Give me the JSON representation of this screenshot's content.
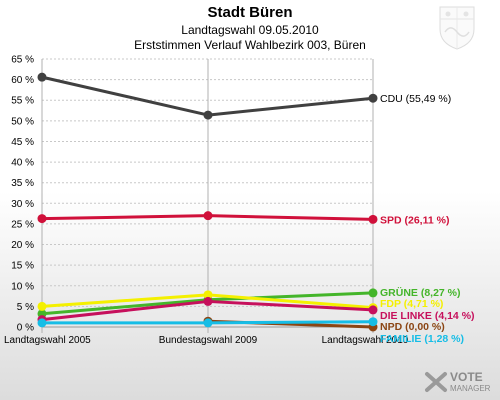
{
  "header": {
    "title": "Stadt Büren",
    "subtitle_1": "Landtagswahl 09.05.2010",
    "subtitle_2": "Erststimmen Verlauf Wahlbezirk 003, Büren"
  },
  "watermark": {
    "main": "VOTE",
    "sub": "MANAGER"
  },
  "chart_data": {
    "type": "line",
    "title": "Stadt Büren",
    "subtitle": "Landtagswahl 09.05.2010",
    "x": [
      "Landtagswahl 2005",
      "Bundestagswahl 2009",
      "Landtagswahl 2010"
    ],
    "ylim": [
      0,
      65
    ],
    "yticks": [
      0,
      5,
      10,
      15,
      20,
      25,
      30,
      35,
      40,
      45,
      50,
      55,
      60,
      65
    ],
    "ytick_labels": [
      "0 %",
      "5 %",
      "10 %",
      "15 %",
      "20 %",
      "25 %",
      "30 %",
      "35 %",
      "40 %",
      "45 %",
      "50 %",
      "55 %",
      "60 %",
      "65 %"
    ],
    "grid": true,
    "series": [
      {
        "name": "CDU",
        "label": "CDU (55,49 %)",
        "values": [
          60.6,
          51.4,
          55.49
        ],
        "color": "#404040"
      },
      {
        "name": "SPD",
        "label": "SPD (26,11 %)",
        "values": [
          26.3,
          27.0,
          26.11
        ],
        "color": "#d0103a"
      },
      {
        "name": "GRÜNE",
        "label": "GRÜNE (8,27 %)",
        "values": [
          3.2,
          6.6,
          8.27
        ],
        "color": "#44b52a"
      },
      {
        "name": "FDP",
        "label": "FDP (4,71 %)",
        "values": [
          5.0,
          7.8,
          4.71
        ],
        "color": "#f4f000"
      },
      {
        "name": "DIE LINKE",
        "label": "DIE LINKE (4,14 %)",
        "values": [
          1.8,
          6.2,
          4.14
        ],
        "color": "#c6105c"
      },
      {
        "name": "NPD",
        "label": "NPD (0,00 %)",
        "values": [
          null,
          1.4,
          0.0
        ],
        "color": "#8b4513"
      },
      {
        "name": "FAMILIE",
        "label": "FAMILIE (1,28 %)",
        "values": [
          1.0,
          1.0,
          1.28
        ],
        "color": "#16bde6"
      }
    ]
  }
}
